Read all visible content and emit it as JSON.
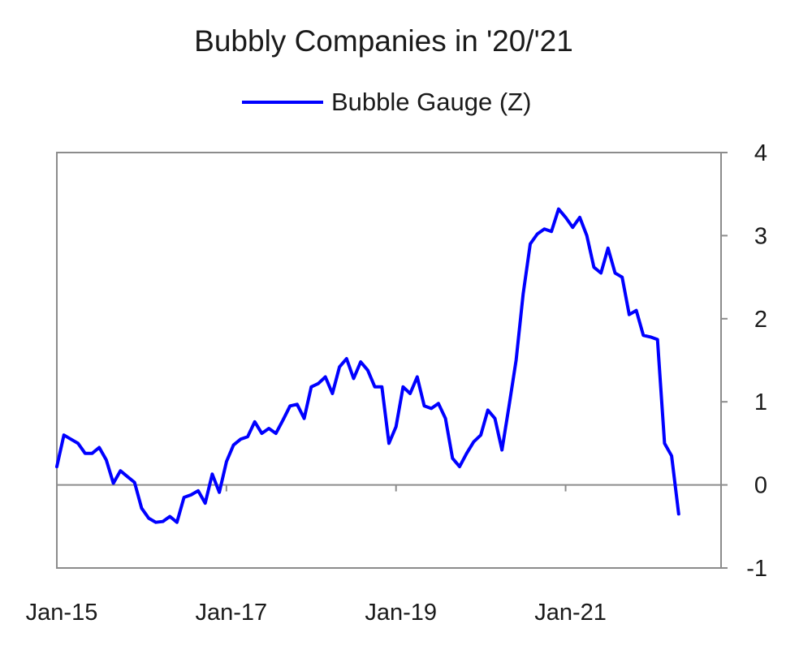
{
  "chart_data": {
    "type": "line",
    "title": "Bubbly Companies in '20/'21",
    "xlabel": "",
    "ylabel": "",
    "x_tick_labels": [
      "Jan-15",
      "Jan-17",
      "Jan-19",
      "Jan-21"
    ],
    "x_tick_values": [
      0,
      24,
      48,
      72
    ],
    "xlim": [
      0,
      94
    ],
    "y_ticks": [
      -1,
      0,
      1,
      2,
      3,
      4
    ],
    "ylim": [
      -1,
      4
    ],
    "y_axis_side": "right",
    "legend_position": "top",
    "grid": false,
    "series": [
      {
        "name": "Bubble Gauge (Z)",
        "color": "#0000ff",
        "x": [
          0,
          1,
          2,
          3,
          4,
          5,
          6,
          7,
          8,
          9,
          10,
          11,
          12,
          13,
          14,
          15,
          16,
          17,
          18,
          19,
          20,
          21,
          22,
          23,
          24,
          25,
          26,
          27,
          28,
          29,
          30,
          31,
          32,
          33,
          34,
          35,
          36,
          37,
          38,
          39,
          40,
          41,
          42,
          43,
          44,
          45,
          46,
          47,
          48,
          49,
          50,
          51,
          52,
          53,
          54,
          55,
          56,
          57,
          58,
          59,
          60,
          61,
          62,
          63,
          64,
          65,
          66,
          67,
          68,
          69,
          70,
          71,
          72,
          73,
          74,
          75,
          76,
          77,
          78,
          79,
          80,
          81,
          82,
          83,
          84,
          85,
          86,
          87,
          88
        ],
        "values": [
          0.22,
          0.6,
          0.55,
          0.5,
          0.38,
          0.38,
          0.45,
          0.3,
          0.02,
          0.17,
          0.1,
          0.03,
          -0.28,
          -0.4,
          -0.45,
          -0.44,
          -0.38,
          -0.45,
          -0.15,
          -0.12,
          -0.07,
          -0.22,
          0.13,
          -0.09,
          0.28,
          0.48,
          0.55,
          0.58,
          0.76,
          0.62,
          0.68,
          0.62,
          0.78,
          0.95,
          0.97,
          0.8,
          1.18,
          1.22,
          1.3,
          1.1,
          1.42,
          1.52,
          1.28,
          1.48,
          1.38,
          1.18,
          1.18,
          0.5,
          0.7,
          1.18,
          1.1,
          1.3,
          0.95,
          0.92,
          0.98,
          0.8,
          0.32,
          0.22,
          0.38,
          0.52,
          0.6,
          0.9,
          0.8,
          0.42,
          0.95,
          1.5,
          2.3,
          2.9,
          3.02,
          3.08,
          3.05,
          3.32,
          3.22,
          3.1,
          3.22,
          3.0,
          2.62,
          2.55,
          2.85,
          2.55,
          2.5,
          2.05,
          2.1,
          1.8,
          1.78,
          1.75,
          0.5,
          0.35,
          -0.35
        ]
      }
    ]
  }
}
